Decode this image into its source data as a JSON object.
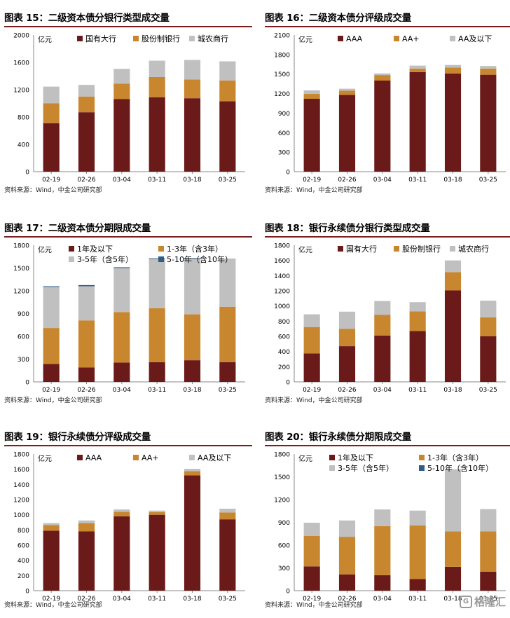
{
  "source_text": "资料来源：Wind，中金公司研究部",
  "colors": {
    "dark_red": "#6b1a1a",
    "orange": "#c8872f",
    "gray": "#c0c0c0",
    "blue": "#2f5d8a"
  },
  "watermark": {
    "icon": "G",
    "text": "格隆汇"
  },
  "chart_data": [
    {
      "id": "c15",
      "type": "bar",
      "stacked": true,
      "title": "图表 15：二级资本债分银行类型成交量",
      "unit": "亿元",
      "categories": [
        "02-19",
        "02-26",
        "03-04",
        "03-11",
        "03-18",
        "03-25"
      ],
      "ylim": [
        0,
        2000
      ],
      "yticks": [
        0,
        400,
        800,
        1200,
        1600,
        2000
      ],
      "series": [
        {
          "name": "国有大行",
          "color": "#6b1a1a",
          "values": [
            710,
            870,
            1065,
            1090,
            1075,
            1030
          ]
        },
        {
          "name": "股份制银行",
          "color": "#c8872f",
          "values": [
            290,
            230,
            225,
            295,
            275,
            305
          ]
        },
        {
          "name": "城农商行",
          "color": "#c0c0c0",
          "values": [
            245,
            170,
            215,
            240,
            285,
            280
          ]
        }
      ],
      "legend_rows": [
        [
          0,
          1,
          2
        ]
      ]
    },
    {
      "id": "c16",
      "type": "bar",
      "stacked": true,
      "title": "图表 16：二级资本债分评级成交量",
      "unit": "亿元",
      "categories": [
        "02-19",
        "02-26",
        "03-04",
        "03-11",
        "03-18",
        "03-25"
      ],
      "ylim": [
        0,
        2100
      ],
      "yticks": [
        0,
        300,
        600,
        900,
        1200,
        1500,
        1800,
        2100
      ],
      "series": [
        {
          "name": "AAA",
          "color": "#6b1a1a",
          "values": [
            1120,
            1180,
            1400,
            1530,
            1510,
            1490
          ]
        },
        {
          "name": "AA+",
          "color": "#c8872f",
          "values": [
            75,
            65,
            85,
            55,
            90,
            95
          ]
        },
        {
          "name": "AA及以下",
          "color": "#c0c0c0",
          "values": [
            55,
            30,
            25,
            45,
            40,
            40
          ]
        }
      ],
      "legend_rows": [
        [
          0,
          1,
          2
        ]
      ]
    },
    {
      "id": "c17",
      "type": "bar",
      "stacked": true,
      "title": "图表 17：二级资本债分期限成交量",
      "unit": "亿元",
      "categories": [
        "02-19",
        "02-26",
        "03-04",
        "03-11",
        "03-18",
        "03-25"
      ],
      "ylim": [
        0,
        1800
      ],
      "yticks": [
        0,
        300,
        600,
        900,
        1200,
        1500,
        1800
      ],
      "series": [
        {
          "name": "1年及以下",
          "color": "#6b1a1a",
          "values": [
            235,
            190,
            255,
            260,
            285,
            260
          ]
        },
        {
          "name": "1-3年（含3年）",
          "color": "#c8872f",
          "values": [
            475,
            620,
            665,
            710,
            605,
            730
          ]
        },
        {
          "name": "3-5年（含5年）",
          "color": "#c0c0c0",
          "values": [
            540,
            450,
            580,
            650,
            730,
            635
          ]
        },
        {
          "name": "5-10年（含10年）",
          "color": "#2f5d8a",
          "values": [
            10,
            15,
            10,
            8,
            10,
            0
          ]
        }
      ],
      "legend_rows": [
        [
          0,
          1
        ],
        [
          2,
          3
        ]
      ]
    },
    {
      "id": "c18",
      "type": "bar",
      "stacked": true,
      "title": "图表 18：银行永续债分银行类型成交量",
      "unit": "亿元",
      "categories": [
        "02-19",
        "02-26",
        "03-04",
        "03-11",
        "03-18",
        "03-25"
      ],
      "ylim": [
        0,
        1800
      ],
      "yticks": [
        0,
        200,
        400,
        600,
        800,
        1000,
        1200,
        1400,
        1600,
        1800
      ],
      "series": [
        {
          "name": "国有大行",
          "color": "#6b1a1a",
          "values": [
            375,
            470,
            610,
            670,
            1205,
            600
          ]
        },
        {
          "name": "股份制银行",
          "color": "#c8872f",
          "values": [
            345,
            230,
            275,
            260,
            240,
            250
          ]
        },
        {
          "name": "城农商行",
          "color": "#c0c0c0",
          "values": [
            170,
            225,
            180,
            120,
            155,
            220
          ]
        }
      ],
      "legend_rows": [
        [
          0,
          1,
          2
        ]
      ]
    },
    {
      "id": "c19",
      "type": "bar",
      "stacked": true,
      "title": "图表 19：银行永续债分评级成交量",
      "unit": "亿元",
      "categories": [
        "02-19",
        "02-26",
        "03-04",
        "03-11",
        "03-18",
        "03-25"
      ],
      "ylim": [
        0,
        1800
      ],
      "yticks": [
        0,
        200,
        400,
        600,
        800,
        1000,
        1200,
        1400,
        1600,
        1800
      ],
      "series": [
        {
          "name": "AAA",
          "color": "#6b1a1a",
          "values": [
            790,
            780,
            980,
            1000,
            1520,
            940
          ]
        },
        {
          "name": "AA+",
          "color": "#c8872f",
          "values": [
            75,
            110,
            60,
            35,
            55,
            90
          ]
        },
        {
          "name": "AA及以下",
          "color": "#c0c0c0",
          "values": [
            25,
            35,
            30,
            20,
            30,
            50
          ]
        }
      ],
      "legend_rows": [
        [
          0,
          1,
          2
        ]
      ]
    },
    {
      "id": "c20",
      "type": "bar",
      "stacked": true,
      "title": "图表 20：银行永续债分期限成交量",
      "unit": "亿元",
      "categories": [
        "02-19",
        "02-26",
        "03-04",
        "03-11",
        "03-18",
        "03-25"
      ],
      "ylim": [
        0,
        1800
      ],
      "yticks": [
        0,
        300,
        600,
        900,
        1200,
        1500,
        1800
      ],
      "series": [
        {
          "name": "1年及以下",
          "color": "#6b1a1a",
          "values": [
            320,
            215,
            205,
            155,
            315,
            250
          ]
        },
        {
          "name": "1-3年（含3年）",
          "color": "#c8872f",
          "values": [
            400,
            495,
            645,
            705,
            465,
            530
          ]
        },
        {
          "name": "3-5年（含5年）",
          "color": "#c0c0c0",
          "values": [
            175,
            215,
            220,
            195,
            820,
            295
          ]
        },
        {
          "name": "5-10年（含10年）",
          "color": "#2f5d8a",
          "values": [
            0,
            0,
            0,
            0,
            0,
            0
          ]
        }
      ],
      "legend_rows": [
        [
          0,
          1
        ],
        [
          2,
          3
        ]
      ]
    }
  ]
}
